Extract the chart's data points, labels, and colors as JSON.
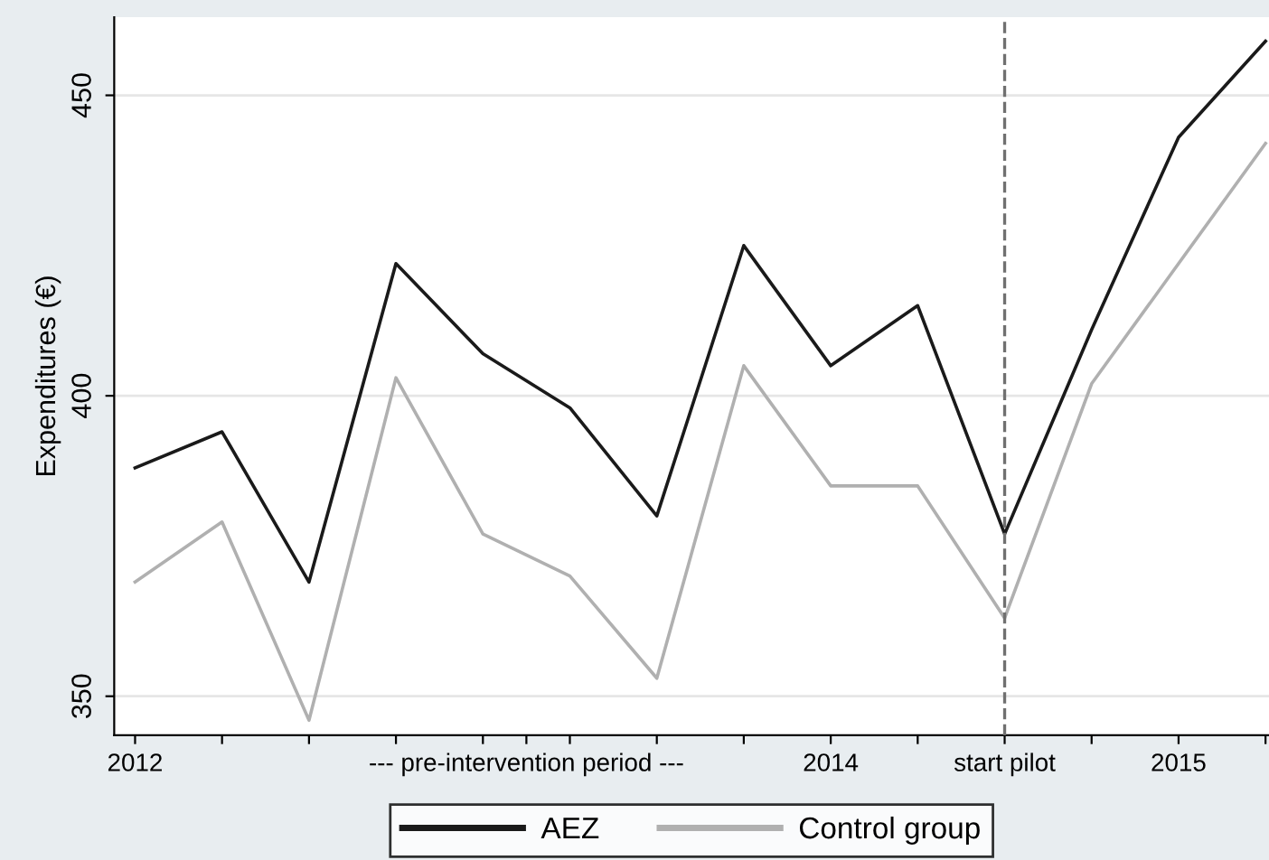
{
  "chart_data": {
    "type": "line",
    "ylabel": "Expenditures (€)",
    "x": [
      2012,
      2012.25,
      2012.5,
      2012.75,
      2013,
      2013.25,
      2013.5,
      2013.75,
      2014,
      2014.25,
      2014.5,
      2014.75,
      2015,
      2015.25
    ],
    "series": [
      {
        "name": "AEZ",
        "color": "#1a1a1a",
        "values": [
          388,
          394,
          369,
          422,
          407,
          398,
          380,
          425,
          405,
          415,
          377,
          411,
          443,
          459
        ]
      },
      {
        "name": "Control group",
        "color": "#b0b0b0",
        "values": [
          369,
          379,
          346,
          403,
          377,
          370,
          353,
          405,
          385,
          385,
          363,
          402,
          422,
          442
        ]
      }
    ],
    "xlim": [
      2011.94,
      2015.26
    ],
    "xticks": [
      {
        "value": 2012,
        "label": "2012"
      },
      {
        "value": 2012.25,
        "label": null
      },
      {
        "value": 2012.5,
        "label": null
      },
      {
        "value": 2012.75,
        "label": null
      },
      {
        "value": 2013,
        "label": null
      },
      {
        "value": 2013.125,
        "label": "--- pre-intervention period ---"
      },
      {
        "value": 2013.25,
        "label": null
      },
      {
        "value": 2013.5,
        "label": null
      },
      {
        "value": 2013.75,
        "label": null
      },
      {
        "value": 2014,
        "label": "2014"
      },
      {
        "value": 2014.25,
        "label": null
      },
      {
        "value": 2014.5,
        "label": "start pilot"
      },
      {
        "value": 2014.75,
        "label": null
      },
      {
        "value": 2015,
        "label": "2015"
      },
      {
        "value": 2015.25,
        "label": null
      }
    ],
    "ylim": [
      343.5,
      463
    ],
    "yticks": [
      350,
      400,
      450
    ],
    "ref_lines": [
      {
        "axis": "x",
        "value": 2014.5,
        "color": "#707070",
        "line_style": "dashed"
      }
    ],
    "grid": "y",
    "legend": "bottom",
    "marker": "none",
    "line_style": "solid"
  }
}
